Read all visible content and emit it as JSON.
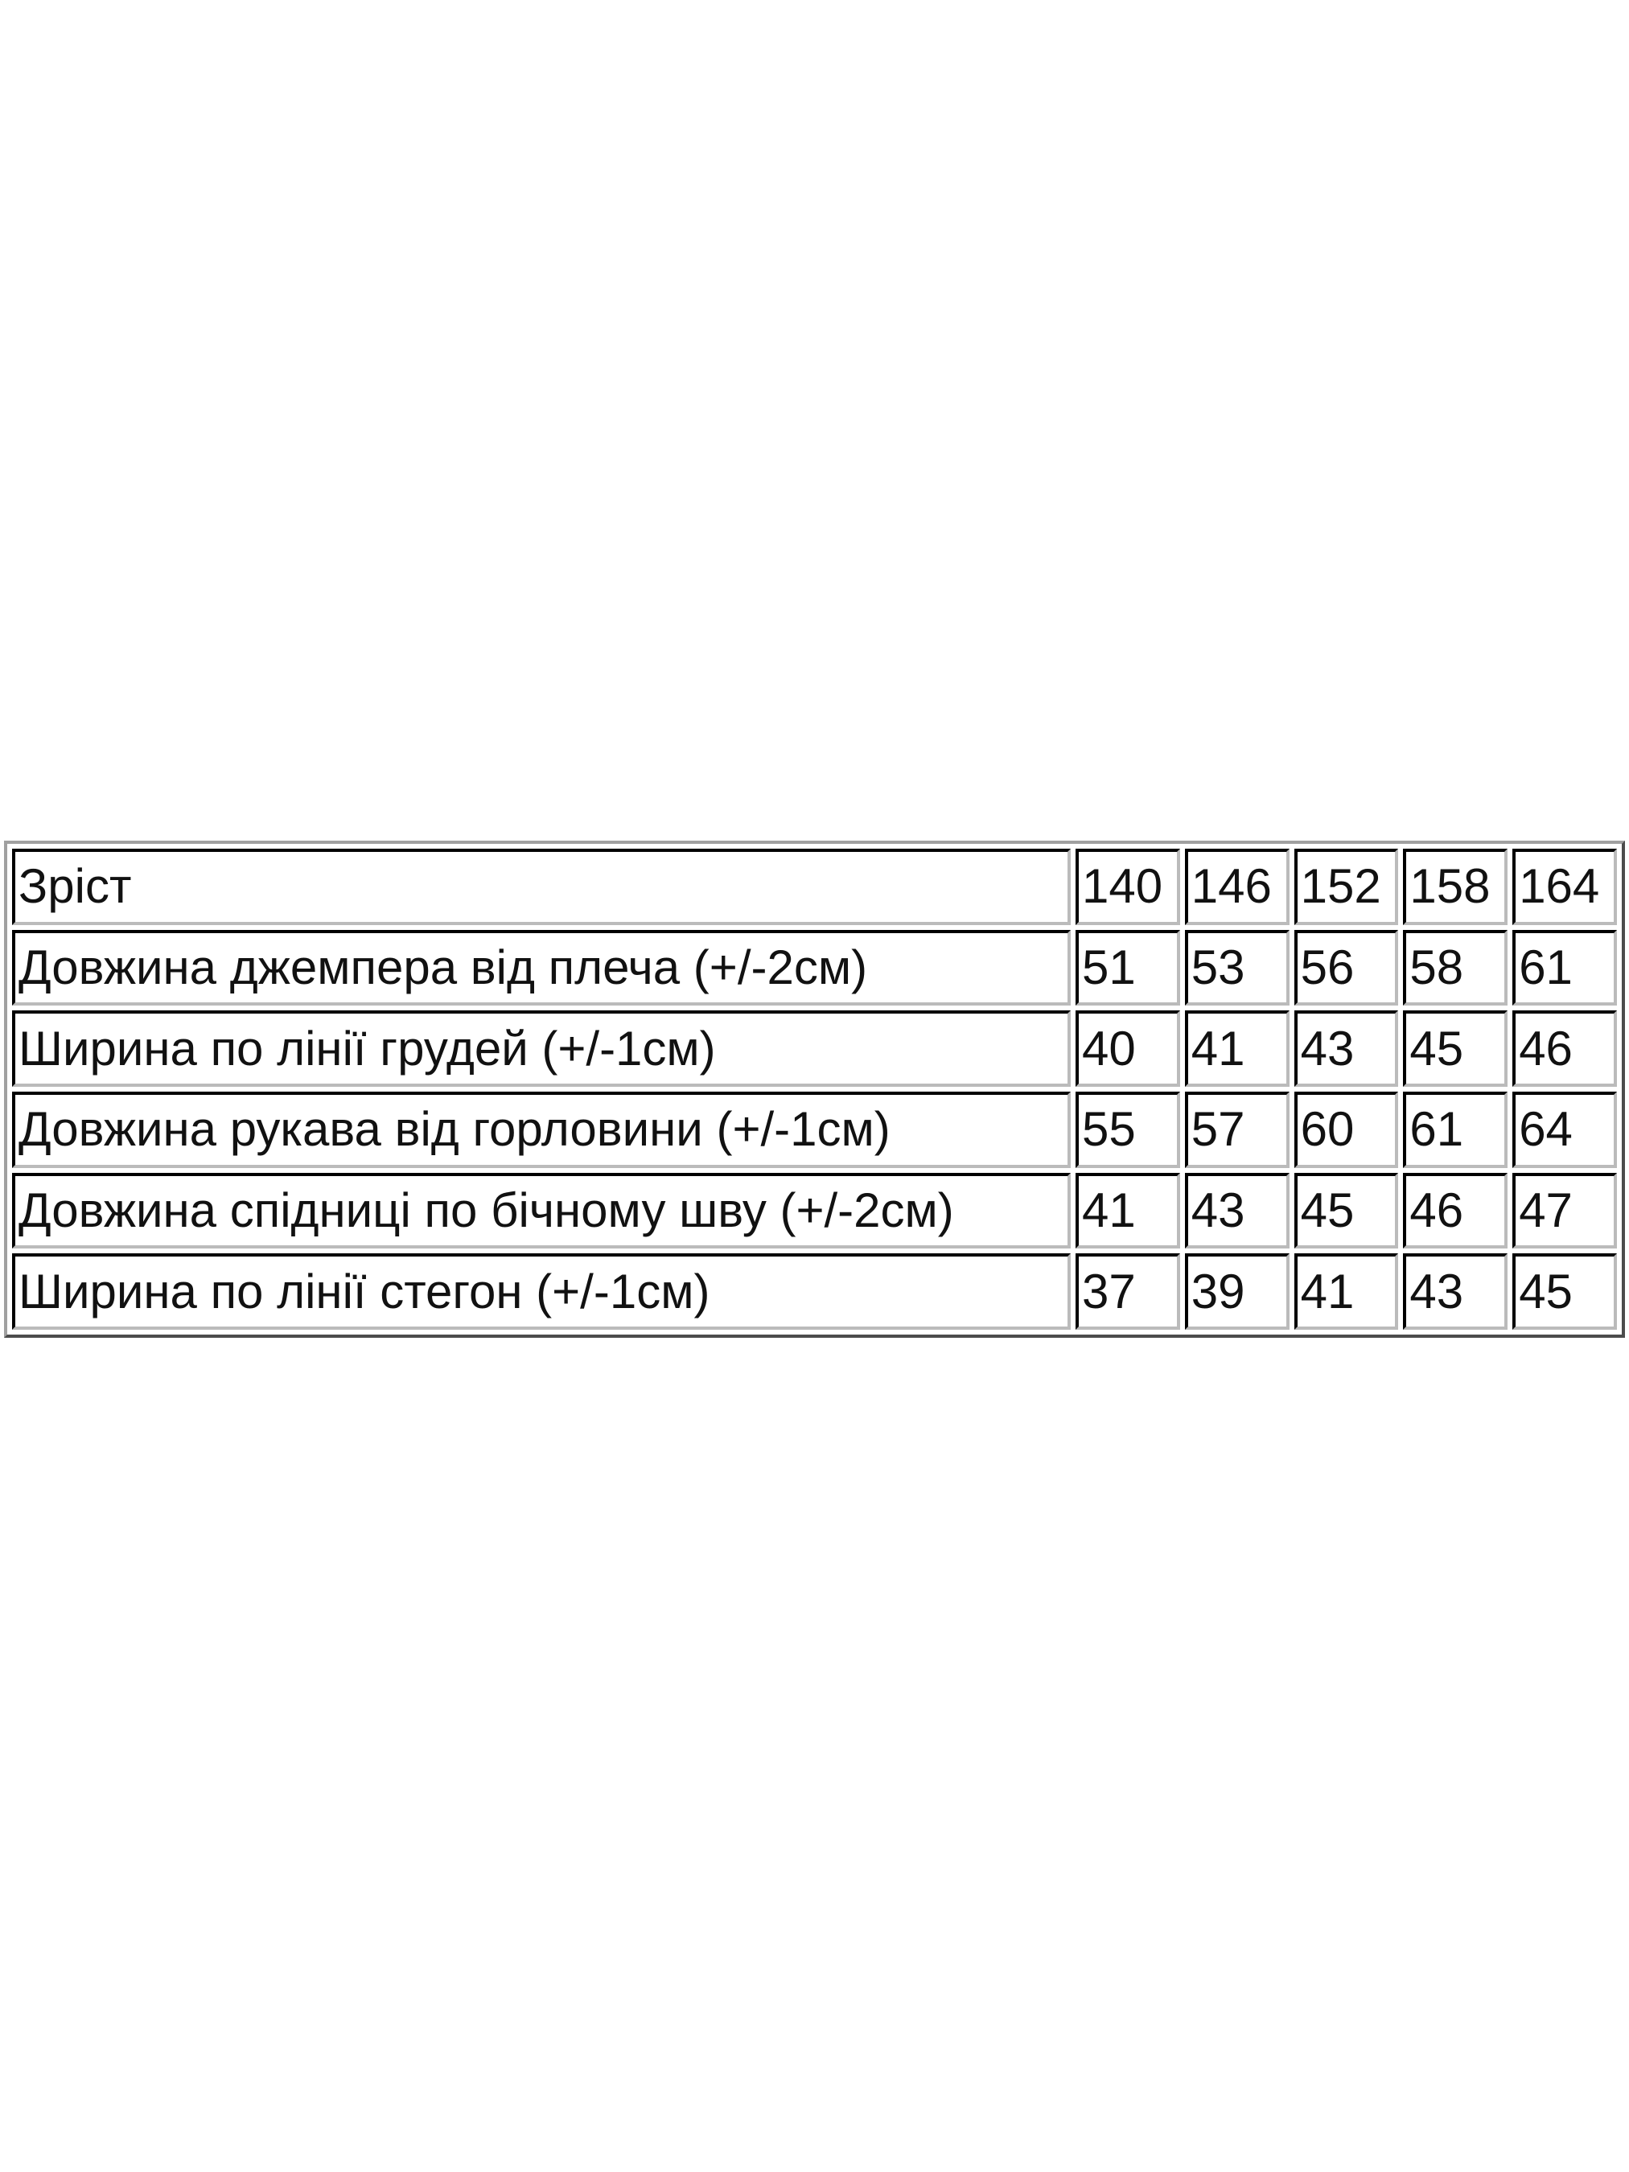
{
  "table": {
    "header": {
      "label": "Зріст",
      "sizes": [
        "140",
        "146",
        "152",
        "158",
        "164"
      ]
    },
    "rows": [
      {
        "label": "Довжина джемпера від плеча (+/-2см)",
        "values": [
          "51",
          "53",
          "56",
          "58",
          "61"
        ]
      },
      {
        "label": "Ширина по лінії грудей (+/-1см)",
        "values": [
          "40",
          "41",
          "43",
          "45",
          "46"
        ]
      },
      {
        "label": "Довжина рукава від горловини (+/-1см)",
        "values": [
          "55",
          "57",
          "60",
          "61",
          "64"
        ]
      },
      {
        "label": "Довжина спідниці по бічному шву (+/-2см)",
        "values": [
          "41",
          "43",
          "45",
          "46",
          "47"
        ]
      },
      {
        "label": "Ширина по лінії стегон (+/-1см)",
        "values": [
          "37",
          "39",
          "41",
          "43",
          "45"
        ]
      }
    ]
  }
}
